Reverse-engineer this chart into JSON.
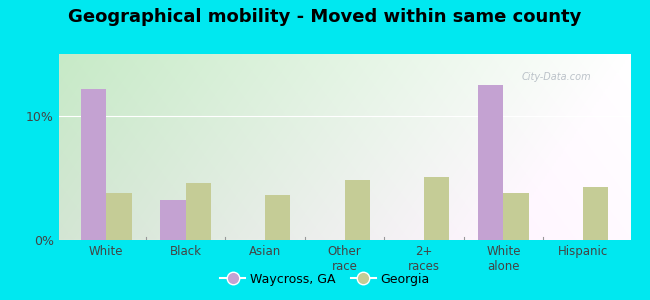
{
  "title": "Geographical mobility - Moved within same county",
  "categories": [
    "White",
    "Black",
    "Asian",
    "Other\nrace",
    "2+\nraces",
    "White\nalone",
    "Hispanic"
  ],
  "waycross_values": [
    12.2,
    3.2,
    0,
    0,
    0,
    12.5,
    0
  ],
  "georgia_values": [
    3.8,
    4.6,
    3.6,
    4.8,
    5.1,
    3.8,
    4.3
  ],
  "waycross_color": "#c4a2d2",
  "georgia_color": "#c5cc96",
  "yticks": [
    0,
    10
  ],
  "ytick_labels": [
    "0%",
    "10%"
  ],
  "ylim": [
    0,
    15
  ],
  "outer_bg": "#00e8f0",
  "plot_bg_left": "#c8e8c8",
  "plot_bg_right": "#f0f8f0",
  "title_fontsize": 13,
  "bar_width": 0.32,
  "legend_labels": [
    "Waycross, GA",
    "Georgia"
  ],
  "watermark": "City-Data.com"
}
